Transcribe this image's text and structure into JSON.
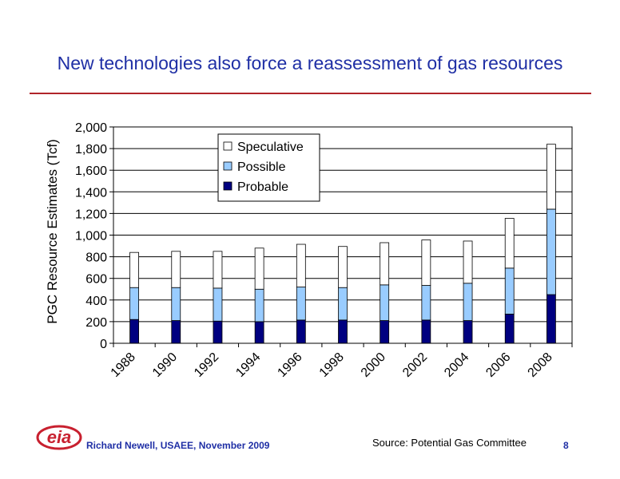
{
  "slide": {
    "title": "New technologies also force a reassessment of gas resources",
    "author": "Richard Newell, USAEE, November 2009",
    "source": "Source: Potential Gas Committee",
    "page_number": "8",
    "logo_text": "eia"
  },
  "colors": {
    "title": "#1f2fa5",
    "rule": "#b0252a",
    "probable": "#000080",
    "possible": "#99ccff",
    "speculative": "#ffffff",
    "logo_red": "#c8202f"
  },
  "chart_data": {
    "type": "bar",
    "stacked": true,
    "categories": [
      "1988",
      "1990",
      "1992",
      "1994",
      "1996",
      "1998",
      "2000",
      "2002",
      "2004",
      "2006",
      "2008"
    ],
    "series": [
      {
        "name": "Probable",
        "values": [
          220,
          210,
          205,
          200,
          215,
          215,
          210,
          215,
          210,
          270,
          450
        ]
      },
      {
        "name": "Possible",
        "values": [
          295,
          305,
          305,
          300,
          305,
          300,
          330,
          320,
          345,
          425,
          790
        ]
      },
      {
        "name": "Speculative",
        "values": [
          325,
          335,
          340,
          380,
          395,
          380,
          390,
          420,
          390,
          460,
          600
        ]
      }
    ],
    "ylabel": "PGC Resource Estimates (Tcf)",
    "xlabel": "",
    "ylim": [
      0,
      2000
    ],
    "yticks": [
      "0",
      "200",
      "400",
      "600",
      "800",
      "1,000",
      "1,200",
      "1,400",
      "1,600",
      "1,800",
      "2,000"
    ],
    "grid": true,
    "legend_position": "top-center",
    "legend_order": [
      "Speculative",
      "Possible",
      "Probable"
    ]
  }
}
